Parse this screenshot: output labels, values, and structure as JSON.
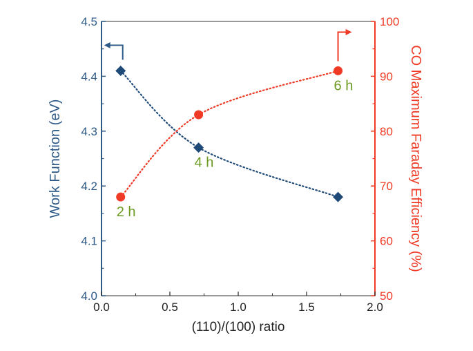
{
  "chart_data": {
    "type": "scatter",
    "xlabel": "(110)/(100) ratio",
    "ylabel_left": "Work Function (eV)",
    "ylabel_right": "CO Maximum Faraday Efficiency (%)",
    "xlim": [
      0.0,
      2.0
    ],
    "ylim_left": [
      4.0,
      4.5
    ],
    "ylim_right": [
      50,
      100
    ],
    "x_ticks": [
      "0.0",
      "0.5",
      "1.0",
      "1.5",
      "2.0"
    ],
    "y_left_ticks": [
      "4.0",
      "4.1",
      "4.2",
      "4.3",
      "4.4",
      "4.5"
    ],
    "y_right_ticks": [
      "50",
      "60",
      "70",
      "80",
      "90",
      "100"
    ],
    "grid": false,
    "colors": {
      "left_axis": "#2d5a87",
      "right_axis": "#f03a25",
      "annotation": "#6a9a1f"
    },
    "series": [
      {
        "axis": "left",
        "marker": "diamond",
        "color": "#1f4a78",
        "line": "dotted",
        "x": [
          0.14,
          0.71,
          1.73
        ],
        "y": [
          4.41,
          4.27,
          4.18
        ]
      },
      {
        "axis": "right",
        "marker": "circle",
        "color": "#f03a25",
        "line": "dotted",
        "x": [
          0.14,
          0.71,
          1.73
        ],
        "y": [
          68,
          83,
          91
        ]
      }
    ],
    "annotations": [
      {
        "text": "2 h",
        "x": 0.14,
        "axis": "right",
        "y": 68
      },
      {
        "text": "4 h",
        "x": 0.71,
        "axis": "left",
        "y": 4.27
      },
      {
        "text": "6 h",
        "x": 1.73,
        "axis": "right",
        "y": 91
      }
    ]
  }
}
